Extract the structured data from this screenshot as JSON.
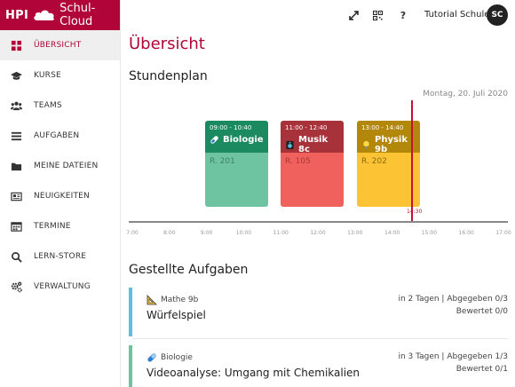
{
  "brand": {
    "hpi": "HPI",
    "name": "Schul-Cloud"
  },
  "sidebar": {
    "items": [
      {
        "label": "ÜBERSICHT",
        "icon": "dashboard-icon",
        "active": true
      },
      {
        "label": "KURSE",
        "icon": "graduation-cap-icon"
      },
      {
        "label": "TEAMS",
        "icon": "users-icon"
      },
      {
        "label": "AUFGABEN",
        "icon": "tasks-icon"
      },
      {
        "label": "MEINE DATEIEN",
        "icon": "folder-icon"
      },
      {
        "label": "NEUIGKEITEN",
        "icon": "newspaper-icon"
      },
      {
        "label": "TERMINE",
        "icon": "calendar-icon"
      },
      {
        "label": "LERN-STORE",
        "icon": "search-icon"
      },
      {
        "label": "VERWALTUNG",
        "icon": "gears-icon"
      }
    ]
  },
  "topbar": {
    "fullscreen_icon": "expand-icon",
    "qr_icon": "qr-code-icon",
    "help_label": "?",
    "user_name": "Tutorial Schule",
    "avatar_initials": "SC"
  },
  "main": {
    "page_title": "Übersicht",
    "timetable_title": "Stundenplan",
    "date": "Montag, 20. Juli 2020",
    "time_ticks": [
      "7:00",
      "8:00",
      "9:00",
      "10:00",
      "11:00",
      "12:00",
      "13:00",
      "14:00",
      "15:00",
      "16:00",
      "17:00"
    ],
    "now_label": "14:30",
    "lessons": [
      {
        "time": "09:00 - 10:40",
        "subject": "Biologie",
        "room": "R. 201",
        "icon": "capsule-icon",
        "head_color": "#1b8a60",
        "body_color": "#6ec3a0"
      },
      {
        "time": "11:00 - 12:40",
        "subject": "Musik 8c",
        "room": "R. 105",
        "icon": "speaker-icon",
        "head_color": "#a8323a",
        "body_color": "#f0605c"
      },
      {
        "time": "13:00 - 14:40",
        "subject": "Physik 9b",
        "room": "R. 202",
        "icon": "lightbulb-icon",
        "head_color": "#b3870a",
        "body_color": "#fcc434"
      }
    ],
    "tasks_title": "Gestellte Aufgaben",
    "tasks": [
      {
        "course": "Mathe 9b",
        "icon": "ruler-triangle-icon",
        "title": "Würfelspiel",
        "due": "in 2 Tagen | Abgegeben 0/3",
        "graded": "Bewertet 0/0",
        "color": "#5bc0de"
      },
      {
        "course": "Biologie",
        "icon": "capsule-icon",
        "title": "Videoanalyse: Umgang mit Chemikalien",
        "due": "in 3 Tagen | Abgegeben 1/3",
        "graded": "Bewertet 0/1",
        "color": "#6ec3a0"
      }
    ]
  }
}
